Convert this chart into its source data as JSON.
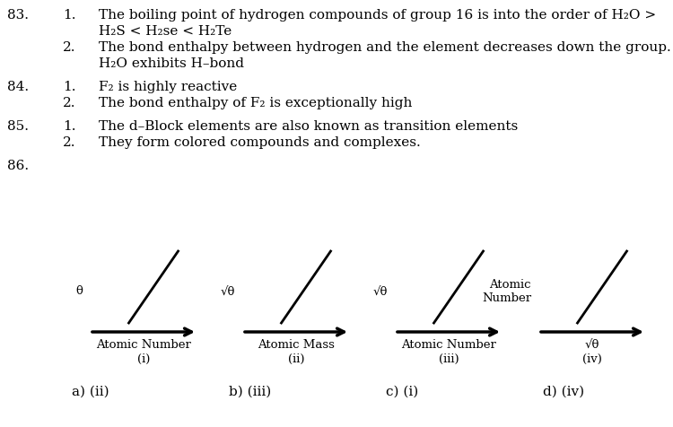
{
  "bg_color": "#ffffff",
  "text_color": "#000000",
  "q83_num": "83.",
  "q83_1": "The boiling point of hydrogen compounds of group 16 is into the order of H₂O >",
  "q83_1b": "H₂S < H₂se < H₂Te",
  "q83_2": "The bond enthalpy between hydrogen and the element decreases down the group.",
  "q83_2b": "H₂O exhibits H–bond",
  "q84_num": "84.",
  "q84_1": "F₂ is highly reactive",
  "q84_2": "The bond enthalpy of F₂ is exceptionally high",
  "q85_num": "85.",
  "q85_1": "The d–Block elements are also known as transition elements",
  "q85_2": "They form colored compounds and complexes.",
  "q86_num": "86.",
  "graph_i_ylabel": "θ",
  "graph_i_xlabel": "Atomic Number",
  "graph_i_label": "(i)",
  "graph_ii_ylabel": "√θ",
  "graph_ii_xlabel": "Atomic Mass",
  "graph_ii_label": "(ii)",
  "graph_iii_ylabel": "√θ",
  "graph_iii_xlabel": "Atomic Number",
  "graph_iii_label": "(iii)",
  "graph_iv_ylabel": "Atomic\nNumber",
  "graph_iv_xlabel": "√θ",
  "graph_iv_label": "(iv)",
  "ans_a": "a) (ii)",
  "ans_b": "b) (iii)",
  "ans_c": "c) (i)",
  "ans_d": "d) (iv)",
  "fig_width": 7.5,
  "fig_height": 4.76,
  "dpi": 100
}
